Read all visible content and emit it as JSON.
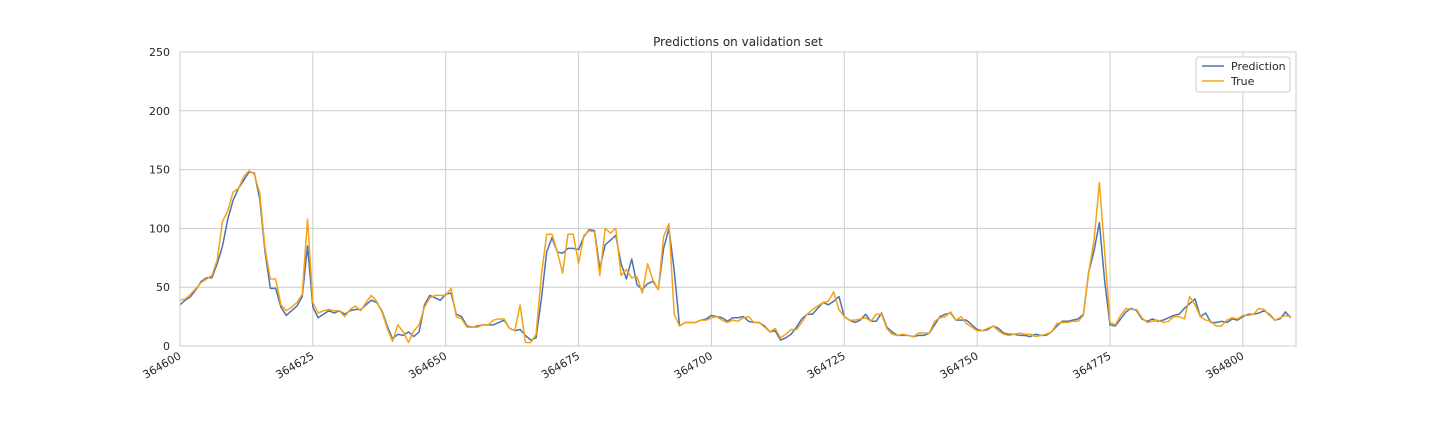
{
  "chart_data": {
    "type": "line",
    "title": "Predictions on validation set",
    "xlabel": "",
    "ylabel": "",
    "xlim": [
      364600,
      364810
    ],
    "ylim": [
      0,
      250
    ],
    "x_start": 364600,
    "x_ticks": [
      364600,
      364625,
      364650,
      364675,
      364700,
      364725,
      364750,
      364775,
      364800
    ],
    "y_ticks": [
      0,
      50,
      100,
      150,
      200,
      250
    ],
    "grid": true,
    "legend_position": "top-right",
    "series": [
      {
        "name": "Prediction",
        "color": "#4c72b0",
        "values": [
          35,
          39,
          42,
          48,
          55,
          58,
          58,
          70,
          85,
          108,
          124,
          134,
          141,
          148,
          147,
          125,
          80,
          49,
          49,
          33,
          26,
          30,
          34,
          42,
          85,
          33,
          24,
          27,
          30,
          28,
          30,
          27,
          30,
          31,
          31,
          35,
          39,
          37,
          30,
          17,
          6,
          10,
          9,
          12,
          8,
          12,
          35,
          43,
          41,
          39,
          44,
          45,
          27,
          25,
          17,
          16,
          17,
          18,
          18,
          18,
          20,
          22,
          15,
          13,
          14,
          9,
          5,
          7,
          40,
          80,
          92,
          80,
          79,
          83,
          83,
          82,
          93,
          99,
          98,
          66,
          86,
          90,
          94,
          70,
          57,
          74,
          52,
          48,
          53,
          55,
          48,
          83,
          100,
          64,
          17,
          20,
          20,
          20,
          22,
          23,
          26,
          25,
          24,
          21,
          24,
          24,
          25,
          21,
          20,
          20,
          17,
          12,
          13,
          5,
          7,
          10,
          16,
          23,
          27,
          27,
          32,
          37,
          35,
          38,
          42,
          25,
          22,
          20,
          22,
          27,
          21,
          21,
          28,
          16,
          12,
          9,
          9,
          9,
          8,
          9,
          9,
          11,
          18,
          25,
          27,
          28,
          22,
          22,
          22,
          18,
          14,
          13,
          14,
          17,
          15,
          11,
          10,
          10,
          9,
          9,
          8,
          10,
          9,
          9,
          12,
          17,
          21,
          21,
          22,
          23,
          27,
          63,
          81,
          105,
          55,
          18,
          17,
          23,
          29,
          32,
          30,
          23,
          21,
          23,
          21,
          22,
          24,
          26,
          27,
          32,
          36,
          40,
          25,
          28,
          20,
          20,
          21,
          20,
          23,
          22,
          25,
          27,
          27,
          28,
          30,
          27,
          22,
          23,
          29,
          24
        ],
        "__note": ""
      },
      {
        "name": "True",
        "color": "#f5a316",
        "values": [
          39,
          40,
          44,
          49,
          54,
          57,
          60,
          73,
          106,
          115,
          131,
          134,
          144,
          149,
          146,
          130,
          83,
          57,
          57,
          35,
          30,
          33,
          37,
          44,
          108,
          37,
          28,
          30,
          31,
          30,
          30,
          25,
          31,
          34,
          30,
          37,
          43,
          38,
          29,
          15,
          4,
          18,
          12,
          3,
          13,
          18,
          33,
          41,
          43,
          43,
          43,
          49,
          25,
          23,
          16,
          16,
          16,
          18,
          18,
          22,
          23,
          23,
          15,
          13,
          35,
          3,
          3,
          10,
          60,
          95,
          95,
          80,
          62,
          95,
          95,
          70,
          94,
          98,
          97,
          60,
          100,
          96,
          100,
          60,
          65,
          58,
          59,
          45,
          70,
          56,
          48,
          93,
          104,
          27,
          17,
          20,
          20,
          20,
          22,
          22,
          24,
          25,
          22,
          20,
          22,
          21,
          24,
          25,
          20,
          20,
          16,
          12,
          15,
          7,
          10,
          14,
          14,
          20,
          27,
          31,
          34,
          37,
          38,
          46,
          31,
          25,
          22,
          22,
          23,
          24,
          21,
          27,
          27,
          15,
          10,
          9,
          10,
          9,
          8,
          11,
          11,
          11,
          21,
          24,
          25,
          29,
          22,
          25,
          19,
          16,
          13,
          13,
          15,
          17,
          13,
          10,
          9,
          10,
          11,
          10,
          10,
          8,
          9,
          10,
          12,
          19,
          20,
          20,
          21,
          21,
          26,
          63,
          90,
          139,
          80,
          20,
          18,
          26,
          32,
          31,
          31,
          24,
          20,
          21,
          22,
          20,
          21,
          25,
          25,
          23,
          42,
          35,
          25,
          22,
          21,
          17,
          17,
          22,
          24,
          23,
          26,
          26,
          27,
          32,
          31,
          26,
          22,
          24,
          26,
          25
        ],
        "__note": ""
      }
    ]
  }
}
